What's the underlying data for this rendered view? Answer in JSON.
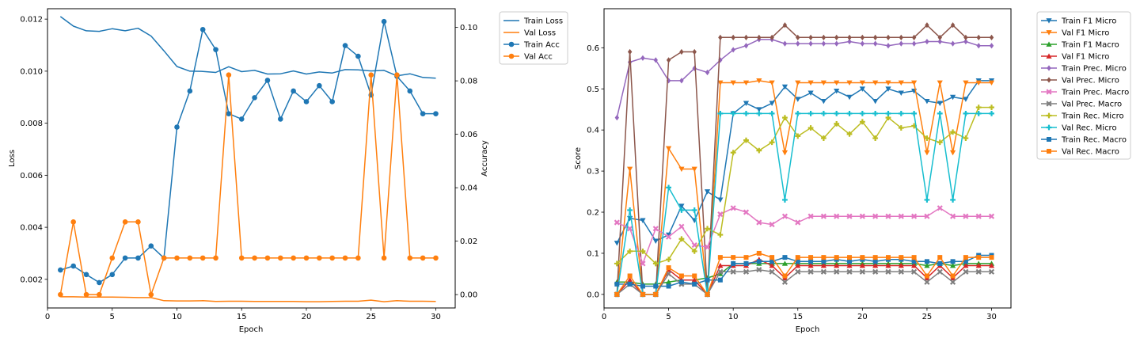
{
  "chart_data": [
    {
      "type": "line",
      "xlabel": "Epoch",
      "ylabel": "Loss",
      "y2label": "Accuracy",
      "xlim": [
        0,
        31.5
      ],
      "ylim": [
        0.0009,
        0.0124
      ],
      "y2lim": [
        -0.005,
        0.107
      ],
      "x_ticks": [
        "0",
        "5",
        "10",
        "15",
        "20",
        "25",
        "30"
      ],
      "y_ticks": [
        "0.002",
        "0.004",
        "0.006",
        "0.008",
        "0.010",
        "0.012"
      ],
      "y2_ticks": [
        "0.00",
        "0.02",
        "0.04",
        "0.06",
        "0.08",
        "0.10"
      ],
      "legend_position": "outside-right",
      "x": [
        1,
        2,
        3,
        4,
        5,
        6,
        7,
        8,
        9,
        10,
        11,
        12,
        13,
        14,
        15,
        16,
        17,
        18,
        19,
        20,
        21,
        22,
        23,
        24,
        25,
        26,
        27,
        28,
        29,
        30
      ],
      "series": [
        {
          "name": "Train Loss",
          "axis": "left",
          "color": "#1f77b4",
          "marker": "none",
          "values": [
            0.0121,
            0.01173,
            0.01155,
            0.01153,
            0.01163,
            0.01155,
            0.01165,
            0.01135,
            0.01078,
            0.01018,
            0.01,
            0.00999,
            0.00995,
            0.01017,
            0.00998,
            0.01003,
            0.00989,
            0.0099,
            0.01001,
            0.00989,
            0.00997,
            0.00993,
            0.01006,
            0.01005,
            0.01001,
            0.01003,
            0.00982,
            0.0099,
            0.00976,
            0.00973
          ]
        },
        {
          "name": "Val Loss",
          "axis": "left",
          "color": "#ff7f0e",
          "marker": "none",
          "values": [
            0.00133,
            0.00133,
            0.00132,
            0.00132,
            0.00132,
            0.00131,
            0.0013,
            0.0013,
            0.00118,
            0.00117,
            0.00117,
            0.00118,
            0.00115,
            0.00116,
            0.00116,
            0.00115,
            0.00115,
            0.00115,
            0.00115,
            0.00114,
            0.00114,
            0.00115,
            0.00116,
            0.00116,
            0.0012,
            0.00114,
            0.00118,
            0.00116,
            0.00116,
            0.00115
          ]
        },
        {
          "name": "Train Acc",
          "axis": "right",
          "color": "#1f77b4",
          "marker": "circle",
          "values": [
            0.0092,
            0.0107,
            0.0075,
            0.0045,
            0.0075,
            0.0137,
            0.0137,
            0.0182,
            0.0137,
            0.0627,
            0.0762,
            0.0992,
            0.0917,
            0.0677,
            0.0657,
            0.0737,
            0.0802,
            0.0657,
            0.0762,
            0.0722,
            0.0782,
            0.0722,
            0.0932,
            0.0892,
            0.0747,
            0.1022,
            0.0817,
            0.0762,
            0.0677,
            0.0677
          ]
        },
        {
          "name": "Val Acc",
          "axis": "right",
          "color": "#ff7f0e",
          "marker": "circle",
          "values": [
            0.0,
            0.0272,
            0.0,
            0.0,
            0.0137,
            0.0272,
            0.0272,
            0.0,
            0.0137,
            0.0137,
            0.0137,
            0.0137,
            0.0137,
            0.0822,
            0.0137,
            0.0137,
            0.0137,
            0.0137,
            0.0137,
            0.0137,
            0.0137,
            0.0137,
            0.0137,
            0.0137,
            0.0822,
            0.0137,
            0.0822,
            0.0137,
            0.0137,
            0.0137
          ]
        }
      ]
    },
    {
      "type": "line",
      "xlabel": "Epoch",
      "ylabel": "Score",
      "xlim": [
        0,
        31.5
      ],
      "ylim": [
        -0.033,
        0.695
      ],
      "x_ticks": [
        "0",
        "5",
        "10",
        "15",
        "20",
        "25",
        "30"
      ],
      "y_ticks": [
        "0.0",
        "0.1",
        "0.2",
        "0.3",
        "0.4",
        "0.5",
        "0.6"
      ],
      "legend_position": "outside-right",
      "x": [
        1,
        2,
        3,
        4,
        5,
        6,
        7,
        8,
        9,
        10,
        11,
        12,
        13,
        14,
        15,
        16,
        17,
        18,
        19,
        20,
        21,
        22,
        23,
        24,
        25,
        26,
        27,
        28,
        29,
        30
      ],
      "series": [
        {
          "name": "Train F1 Micro",
          "color": "#1f77b4",
          "marker": "tri-down",
          "values": [
            0.125,
            0.185,
            0.18,
            0.13,
            0.145,
            0.215,
            0.18,
            0.25,
            0.23,
            0.44,
            0.465,
            0.45,
            0.465,
            0.505,
            0.475,
            0.49,
            0.47,
            0.495,
            0.48,
            0.5,
            0.47,
            0.5,
            0.49,
            0.495,
            0.47,
            0.465,
            0.48,
            0.475,
            0.52,
            0.52
          ]
        },
        {
          "name": "Val F1 Micro",
          "color": "#ff7f0e",
          "marker": "tri-down",
          "values": [
            0.0,
            0.305,
            0.0,
            0.0,
            0.355,
            0.305,
            0.305,
            0.0,
            0.515,
            0.515,
            0.515,
            0.52,
            0.515,
            0.345,
            0.515,
            0.515,
            0.515,
            0.515,
            0.515,
            0.515,
            0.515,
            0.515,
            0.515,
            0.515,
            0.345,
            0.515,
            0.345,
            0.515,
            0.515,
            0.515
          ]
        },
        {
          "name": "Train F1 Macro",
          "color": "#2ca02c",
          "marker": "tri-up",
          "values": [
            0.03,
            0.03,
            0.025,
            0.025,
            0.03,
            0.035,
            0.035,
            0.04,
            0.05,
            0.075,
            0.075,
            0.075,
            0.075,
            0.075,
            0.075,
            0.075,
            0.075,
            0.075,
            0.075,
            0.075,
            0.075,
            0.075,
            0.075,
            0.075,
            0.07,
            0.075,
            0.07,
            0.075,
            0.075,
            0.075
          ]
        },
        {
          "name": "Val F1 Micro",
          "color": "#d62728",
          "marker": "tri-up",
          "values": [
            0.0,
            0.035,
            0.0,
            0.0,
            0.06,
            0.035,
            0.035,
            0.0,
            0.07,
            0.07,
            0.07,
            0.085,
            0.07,
            0.04,
            0.07,
            0.07,
            0.07,
            0.07,
            0.07,
            0.07,
            0.07,
            0.07,
            0.07,
            0.07,
            0.04,
            0.07,
            0.04,
            0.07,
            0.07,
            0.07
          ]
        },
        {
          "name": "Train Prec. Micro",
          "color": "#9467bd",
          "marker": "diamond",
          "values": [
            0.43,
            0.565,
            0.575,
            0.57,
            0.52,
            0.52,
            0.55,
            0.54,
            0.57,
            0.595,
            0.605,
            0.62,
            0.62,
            0.61,
            0.61,
            0.61,
            0.61,
            0.61,
            0.615,
            0.61,
            0.61,
            0.605,
            0.61,
            0.61,
            0.615,
            0.615,
            0.61,
            0.615,
            0.605,
            0.605
          ]
        },
        {
          "name": "Val Prec. Micro",
          "color": "#8c564b",
          "marker": "diamond",
          "values": [
            0.0,
            0.59,
            0.0,
            0.0,
            0.57,
            0.59,
            0.59,
            0.0,
            0.625,
            0.625,
            0.625,
            0.625,
            0.625,
            0.655,
            0.625,
            0.625,
            0.625,
            0.625,
            0.625,
            0.625,
            0.625,
            0.625,
            0.625,
            0.625,
            0.655,
            0.625,
            0.655,
            0.625,
            0.625,
            0.625
          ]
        },
        {
          "name": "Train Prec. Macro",
          "color": "#e377c2",
          "marker": "x",
          "values": [
            0.175,
            0.16,
            0.075,
            0.16,
            0.14,
            0.165,
            0.12,
            0.115,
            0.195,
            0.21,
            0.2,
            0.175,
            0.17,
            0.19,
            0.175,
            0.19,
            0.19,
            0.19,
            0.19,
            0.19,
            0.19,
            0.19,
            0.19,
            0.19,
            0.19,
            0.21,
            0.19,
            0.19,
            0.19,
            0.19
          ]
        },
        {
          "name": "Val Prec. Macro",
          "color": "#7f7f7f",
          "marker": "x",
          "values": [
            0.0,
            0.025,
            0.0,
            0.0,
            0.05,
            0.025,
            0.025,
            0.0,
            0.055,
            0.055,
            0.055,
            0.06,
            0.055,
            0.03,
            0.055,
            0.055,
            0.055,
            0.055,
            0.055,
            0.055,
            0.055,
            0.055,
            0.055,
            0.055,
            0.03,
            0.055,
            0.03,
            0.055,
            0.055,
            0.055
          ]
        },
        {
          "name": "Train Rec. Micro",
          "color": "#bcbd22",
          "marker": "plus",
          "values": [
            0.075,
            0.105,
            0.105,
            0.075,
            0.085,
            0.135,
            0.105,
            0.16,
            0.145,
            0.345,
            0.375,
            0.35,
            0.37,
            0.43,
            0.385,
            0.405,
            0.38,
            0.415,
            0.39,
            0.42,
            0.38,
            0.43,
            0.405,
            0.41,
            0.38,
            0.37,
            0.395,
            0.38,
            0.455,
            0.455
          ]
        },
        {
          "name": "Val Rec. Micro",
          "color": "#17becf",
          "marker": "plus",
          "values": [
            0.0,
            0.205,
            0.0,
            0.0,
            0.26,
            0.205,
            0.205,
            0.0,
            0.44,
            0.44,
            0.44,
            0.44,
            0.44,
            0.23,
            0.44,
            0.44,
            0.44,
            0.44,
            0.44,
            0.44,
            0.44,
            0.44,
            0.44,
            0.44,
            0.23,
            0.44,
            0.23,
            0.44,
            0.44,
            0.44
          ]
        },
        {
          "name": "Train Rec. Macro",
          "color": "#1f77b4",
          "marker": "square",
          "values": [
            0.025,
            0.025,
            0.02,
            0.02,
            0.02,
            0.03,
            0.025,
            0.035,
            0.035,
            0.075,
            0.075,
            0.08,
            0.08,
            0.09,
            0.08,
            0.08,
            0.08,
            0.085,
            0.08,
            0.085,
            0.08,
            0.085,
            0.085,
            0.08,
            0.08,
            0.075,
            0.08,
            0.08,
            0.095,
            0.095
          ]
        },
        {
          "name": "Val Rec. Macro",
          "color": "#ff7f0e",
          "marker": "square",
          "values": [
            0.0,
            0.045,
            0.0,
            0.0,
            0.065,
            0.045,
            0.045,
            0.0,
            0.09,
            0.09,
            0.09,
            0.1,
            0.09,
            0.045,
            0.09,
            0.09,
            0.09,
            0.09,
            0.09,
            0.09,
            0.09,
            0.09,
            0.09,
            0.09,
            0.045,
            0.09,
            0.045,
            0.09,
            0.09,
            0.09
          ]
        }
      ]
    }
  ]
}
